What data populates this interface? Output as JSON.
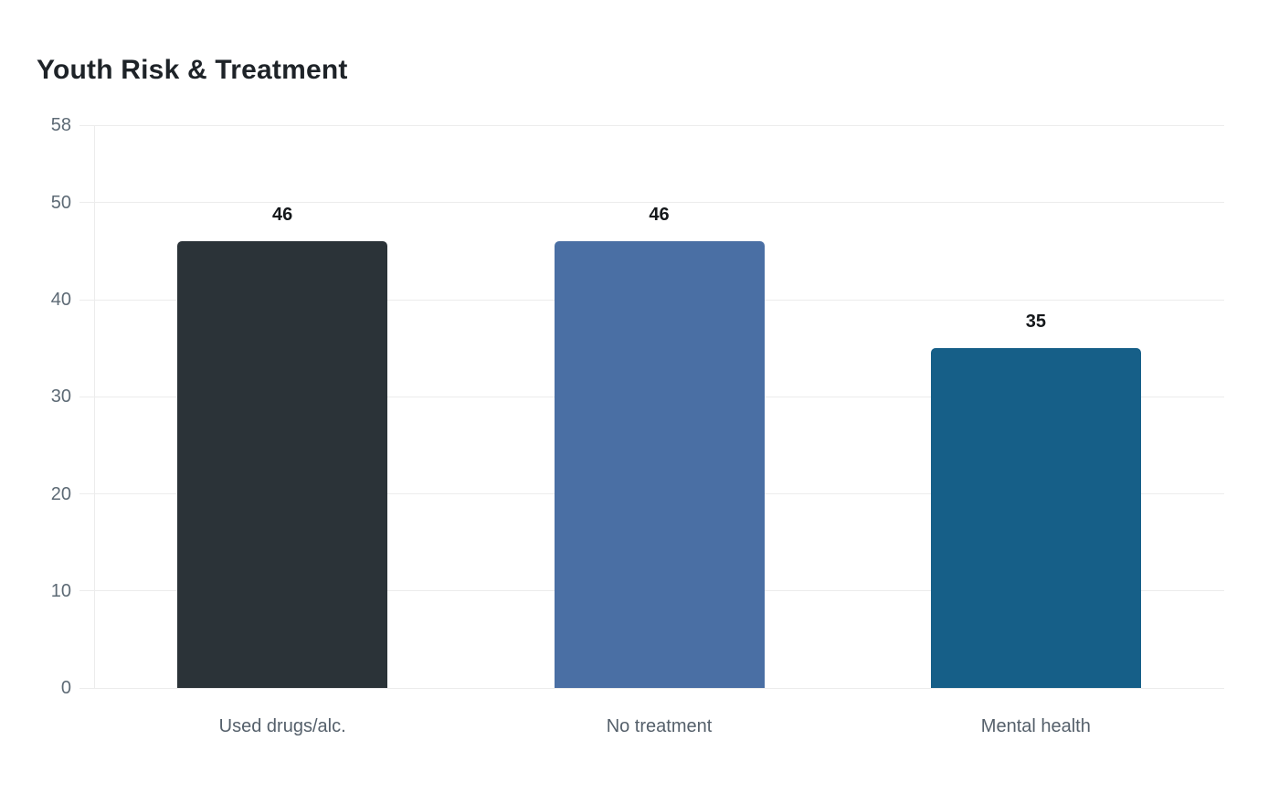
{
  "chart_data": {
    "type": "bar",
    "title": "Youth Risk & Treatment",
    "categories": [
      "Used drugs/alc.",
      "No treatment",
      "Mental health"
    ],
    "values": [
      46,
      46,
      35
    ],
    "value_labels": [
      "46",
      "46",
      "35"
    ],
    "bar_colors": [
      "#2b3338",
      "#4a6fa4",
      "#165f88"
    ],
    "y_ticks": [
      0,
      10,
      20,
      30,
      40,
      50,
      58
    ],
    "ylim": [
      0,
      58
    ],
    "xlabel": "",
    "ylabel": "",
    "grid": "horizontal-only",
    "legend": "none",
    "colors": {
      "background": "#ffffff",
      "grid": "#ececec",
      "axis_line": "#ececec",
      "tick_label": "#5d6a75",
      "category_label": "#55606b",
      "value_label": "#15181b",
      "title": "#1e2328"
    }
  }
}
